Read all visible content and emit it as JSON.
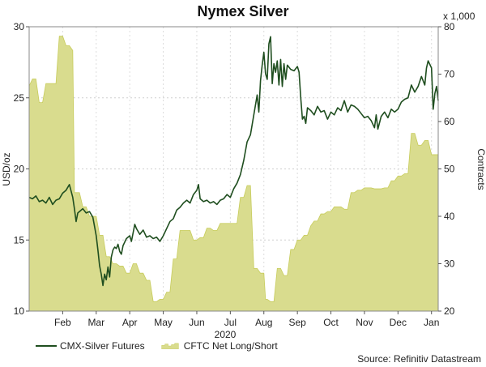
{
  "chart_data": {
    "type": "line+area",
    "title": "Nymex Silver",
    "xlabel": "2020",
    "ylabel_left": "USD/oz",
    "ylabel_right": "Contracts",
    "right_multiplier": "x 1,000",
    "ylim_left": [
      10,
      30
    ],
    "ylim_right": [
      20,
      80
    ],
    "yticks_left": [
      "10",
      "15",
      "20",
      "25",
      "30"
    ],
    "yticks_right": [
      "20",
      "30",
      "40",
      "50",
      "60",
      "70",
      "80"
    ],
    "x_range": [
      0,
      12.2
    ],
    "month_ticks": [
      {
        "label": "Feb",
        "pos": 1.0
      },
      {
        "label": "Mar",
        "pos": 2.0
      },
      {
        "label": "Apr",
        "pos": 3.0
      },
      {
        "label": "May",
        "pos": 4.0
      },
      {
        "label": "Jun",
        "pos": 5.0
      },
      {
        "label": "Jul",
        "pos": 6.0
      },
      {
        "label": "Aug",
        "pos": 7.0
      },
      {
        "label": "Sep",
        "pos": 8.0
      },
      {
        "label": "Oct",
        "pos": 9.0
      },
      {
        "label": "Nov",
        "pos": 10.0
      },
      {
        "label": "Dec",
        "pos": 11.0
      },
      {
        "label": "Jan",
        "pos": 12.0
      }
    ],
    "series": [
      {
        "name": "CMX-Silver Futures",
        "axis": "left",
        "color": "#1f4e1f",
        "points": [
          [
            0,
            18.0
          ],
          [
            0.1,
            17.9
          ],
          [
            0.2,
            18.1
          ],
          [
            0.3,
            17.7
          ],
          [
            0.4,
            17.8
          ],
          [
            0.5,
            17.6
          ],
          [
            0.6,
            18.0
          ],
          [
            0.7,
            17.5
          ],
          [
            0.8,
            17.8
          ],
          [
            0.9,
            17.9
          ],
          [
            1.0,
            18.3
          ],
          [
            1.1,
            18.5
          ],
          [
            1.2,
            18.9
          ],
          [
            1.3,
            18.0
          ],
          [
            1.35,
            17.2
          ],
          [
            1.4,
            16.3
          ],
          [
            1.45,
            16.9
          ],
          [
            1.5,
            17.0
          ],
          [
            1.6,
            17.2
          ],
          [
            1.7,
            16.9
          ],
          [
            1.8,
            17.0
          ],
          [
            1.9,
            16.6
          ],
          [
            2.0,
            15.3
          ],
          [
            2.05,
            14.3
          ],
          [
            2.1,
            13.2
          ],
          [
            2.15,
            12.6
          ],
          [
            2.2,
            11.8
          ],
          [
            2.25,
            12.6
          ],
          [
            2.3,
            12.2
          ],
          [
            2.35,
            13.1
          ],
          [
            2.4,
            12.4
          ],
          [
            2.45,
            13.8
          ],
          [
            2.5,
            14.3
          ],
          [
            2.55,
            14.5
          ],
          [
            2.6,
            14.4
          ],
          [
            2.65,
            14.7
          ],
          [
            2.7,
            14.2
          ],
          [
            2.75,
            14.0
          ],
          [
            2.8,
            14.6
          ],
          [
            2.9,
            15.1
          ],
          [
            3.0,
            15.3
          ],
          [
            3.05,
            14.9
          ],
          [
            3.1,
            15.5
          ],
          [
            3.15,
            16.1
          ],
          [
            3.2,
            15.8
          ],
          [
            3.3,
            15.4
          ],
          [
            3.4,
            15.7
          ],
          [
            3.5,
            15.2
          ],
          [
            3.6,
            15.3
          ],
          [
            3.7,
            15.1
          ],
          [
            3.8,
            15.2
          ],
          [
            3.9,
            14.9
          ],
          [
            4.0,
            15.3
          ],
          [
            4.1,
            15.8
          ],
          [
            4.2,
            16.3
          ],
          [
            4.3,
            16.5
          ],
          [
            4.4,
            17.1
          ],
          [
            4.5,
            17.3
          ],
          [
            4.6,
            17.6
          ],
          [
            4.7,
            17.8
          ],
          [
            4.8,
            17.6
          ],
          [
            4.9,
            18.2
          ],
          [
            5.0,
            18.5
          ],
          [
            5.05,
            18.9
          ],
          [
            5.1,
            17.9
          ],
          [
            5.2,
            17.7
          ],
          [
            5.3,
            17.8
          ],
          [
            5.4,
            17.6
          ],
          [
            5.5,
            17.7
          ],
          [
            5.6,
            17.5
          ],
          [
            5.7,
            17.8
          ],
          [
            5.8,
            17.9
          ],
          [
            5.9,
            18.2
          ],
          [
            6.0,
            18.0
          ],
          [
            6.1,
            18.6
          ],
          [
            6.2,
            19.0
          ],
          [
            6.3,
            19.6
          ],
          [
            6.4,
            20.6
          ],
          [
            6.5,
            21.9
          ],
          [
            6.6,
            22.4
          ],
          [
            6.7,
            23.8
          ],
          [
            6.8,
            25.2
          ],
          [
            6.85,
            24.0
          ],
          [
            6.9,
            26.2
          ],
          [
            6.95,
            27.3
          ],
          [
            7.0,
            28.2
          ],
          [
            7.05,
            26.7
          ],
          [
            7.1,
            26.3
          ],
          [
            7.15,
            28.8
          ],
          [
            7.2,
            29.3
          ],
          [
            7.25,
            26.0
          ],
          [
            7.3,
            27.4
          ],
          [
            7.35,
            26.8
          ],
          [
            7.4,
            27.6
          ],
          [
            7.45,
            25.9
          ],
          [
            7.5,
            27.7
          ],
          [
            7.55,
            25.8
          ],
          [
            7.6,
            27.4
          ],
          [
            7.65,
            26.3
          ],
          [
            7.7,
            27.3
          ],
          [
            7.8,
            27.0
          ],
          [
            7.9,
            26.9
          ],
          [
            8.0,
            27.2
          ],
          [
            8.05,
            26.8
          ],
          [
            8.1,
            25.0
          ],
          [
            8.15,
            23.5
          ],
          [
            8.2,
            23.7
          ],
          [
            8.25,
            23.2
          ],
          [
            8.3,
            24.3
          ],
          [
            8.4,
            24.1
          ],
          [
            8.5,
            23.8
          ],
          [
            8.6,
            24.4
          ],
          [
            8.7,
            24.0
          ],
          [
            8.8,
            24.1
          ],
          [
            8.9,
            23.5
          ],
          [
            9.0,
            24.0
          ],
          [
            9.1,
            23.8
          ],
          [
            9.2,
            24.3
          ],
          [
            9.3,
            24.1
          ],
          [
            9.4,
            24.8
          ],
          [
            9.5,
            24.0
          ],
          [
            9.6,
            24.5
          ],
          [
            9.7,
            24.4
          ],
          [
            9.8,
            24.2
          ],
          [
            9.9,
            23.9
          ],
          [
            10.0,
            23.6
          ],
          [
            10.1,
            23.7
          ],
          [
            10.2,
            23.4
          ],
          [
            10.3,
            22.9
          ],
          [
            10.35,
            23.8
          ],
          [
            10.4,
            22.8
          ],
          [
            10.5,
            23.7
          ],
          [
            10.6,
            24.0
          ],
          [
            10.7,
            23.6
          ],
          [
            10.8,
            24.2
          ],
          [
            10.9,
            24.0
          ],
          [
            11.0,
            24.2
          ],
          [
            11.1,
            24.7
          ],
          [
            11.2,
            24.9
          ],
          [
            11.3,
            25.0
          ],
          [
            11.4,
            25.9
          ],
          [
            11.5,
            25.4
          ],
          [
            11.6,
            25.8
          ],
          [
            11.7,
            26.5
          ],
          [
            11.8,
            25.9
          ],
          [
            11.85,
            27.1
          ],
          [
            11.9,
            27.6
          ],
          [
            12.0,
            27.1
          ],
          [
            12.05,
            24.2
          ],
          [
            12.1,
            25.3
          ],
          [
            12.15,
            25.8
          ],
          [
            12.2,
            24.8
          ]
        ]
      },
      {
        "name": "CFTC Net Long/Short",
        "axis": "right",
        "color": "#c7cc5b",
        "fill": "#d9dc8e",
        "points": [
          [
            0,
            67.5
          ],
          [
            0.1,
            69.0
          ],
          [
            0.2,
            69.0
          ],
          [
            0.3,
            64.0
          ],
          [
            0.4,
            64.0
          ],
          [
            0.5,
            68.0
          ],
          [
            0.6,
            68.0
          ],
          [
            0.7,
            68.0
          ],
          [
            0.8,
            68.0
          ],
          [
            0.9,
            78.0
          ],
          [
            1.0,
            78.0
          ],
          [
            1.1,
            76.0
          ],
          [
            1.2,
            76.0
          ],
          [
            1.3,
            75.0
          ],
          [
            1.35,
            45.0
          ],
          [
            1.4,
            45.0
          ],
          [
            1.5,
            45.0
          ],
          [
            1.6,
            42.0
          ],
          [
            1.7,
            42.0
          ],
          [
            1.8,
            40.0
          ],
          [
            1.9,
            40.0
          ],
          [
            2.0,
            40.0
          ],
          [
            2.1,
            36.0
          ],
          [
            2.2,
            36.0
          ],
          [
            2.3,
            31.5
          ],
          [
            2.4,
            31.5
          ],
          [
            2.5,
            30.0
          ],
          [
            2.6,
            30.0
          ],
          [
            2.7,
            29.5
          ],
          [
            2.8,
            29.5
          ],
          [
            2.9,
            28.0
          ],
          [
            3.0,
            28.0
          ],
          [
            3.1,
            30.0
          ],
          [
            3.2,
            30.0
          ],
          [
            3.3,
            28.0
          ],
          [
            3.4,
            28.0
          ],
          [
            3.5,
            26.5
          ],
          [
            3.6,
            26.5
          ],
          [
            3.7,
            22.0
          ],
          [
            3.8,
            22.0
          ],
          [
            3.9,
            22.5
          ],
          [
            4.0,
            22.5
          ],
          [
            4.1,
            24.0
          ],
          [
            4.2,
            24.0
          ],
          [
            4.3,
            31.0
          ],
          [
            4.4,
            31.0
          ],
          [
            4.5,
            37.0
          ],
          [
            4.6,
            37.0
          ],
          [
            4.7,
            37.0
          ],
          [
            4.8,
            37.0
          ],
          [
            4.9,
            35.0
          ],
          [
            5.0,
            35.0
          ],
          [
            5.1,
            35.5
          ],
          [
            5.2,
            35.5
          ],
          [
            5.3,
            37.5
          ],
          [
            5.4,
            37.5
          ],
          [
            5.5,
            37.0
          ],
          [
            5.6,
            37.0
          ],
          [
            5.7,
            38.5
          ],
          [
            5.8,
            38.5
          ],
          [
            5.9,
            38.5
          ],
          [
            6.0,
            38.5
          ],
          [
            6.1,
            38.5
          ],
          [
            6.2,
            38.5
          ],
          [
            6.3,
            44.0
          ],
          [
            6.4,
            44.0
          ],
          [
            6.5,
            46.5
          ],
          [
            6.6,
            46.5
          ],
          [
            6.7,
            29.0
          ],
          [
            6.8,
            29.0
          ],
          [
            6.9,
            28.0
          ],
          [
            7.0,
            28.0
          ],
          [
            7.05,
            22.5
          ],
          [
            7.1,
            22.5
          ],
          [
            7.2,
            22.0
          ],
          [
            7.3,
            22.0
          ],
          [
            7.4,
            29.0
          ],
          [
            7.5,
            29.0
          ],
          [
            7.6,
            27.5
          ],
          [
            7.7,
            27.5
          ],
          [
            7.8,
            33.0
          ],
          [
            7.9,
            33.0
          ],
          [
            8.0,
            35.0
          ],
          [
            8.1,
            35.0
          ],
          [
            8.2,
            36.0
          ],
          [
            8.3,
            36.0
          ],
          [
            8.4,
            38.0
          ],
          [
            8.5,
            39.0
          ],
          [
            8.6,
            39.0
          ],
          [
            8.7,
            40.5
          ],
          [
            8.8,
            40.5
          ],
          [
            8.9,
            41.0
          ],
          [
            9.0,
            41.0
          ],
          [
            9.1,
            42.0
          ],
          [
            9.2,
            42.0
          ],
          [
            9.3,
            42.0
          ],
          [
            9.4,
            41.5
          ],
          [
            9.5,
            41.5
          ],
          [
            9.6,
            45.0
          ],
          [
            9.7,
            45.0
          ],
          [
            9.8,
            45.5
          ],
          [
            9.9,
            45.5
          ],
          [
            10.0,
            46.0
          ],
          [
            10.1,
            46.0
          ],
          [
            10.2,
            46.0
          ],
          [
            10.3,
            45.8
          ],
          [
            10.4,
            45.8
          ],
          [
            10.5,
            45.8
          ],
          [
            10.6,
            46.0
          ],
          [
            10.7,
            46.0
          ],
          [
            10.8,
            47.5
          ],
          [
            10.9,
            47.5
          ],
          [
            11.0,
            48.5
          ],
          [
            11.1,
            48.5
          ],
          [
            11.2,
            49.0
          ],
          [
            11.3,
            49.0
          ],
          [
            11.4,
            57.5
          ],
          [
            11.5,
            57.5
          ],
          [
            11.6,
            55.0
          ],
          [
            11.7,
            55.0
          ],
          [
            11.8,
            56.0
          ],
          [
            11.9,
            56.0
          ],
          [
            12.0,
            53.0
          ],
          [
            12.2,
            53.0
          ]
        ]
      }
    ],
    "legend": [
      "CMX-Silver Futures",
      "CFTC Net Long/Short"
    ],
    "source": "Source: Refinitiv Datastream"
  }
}
